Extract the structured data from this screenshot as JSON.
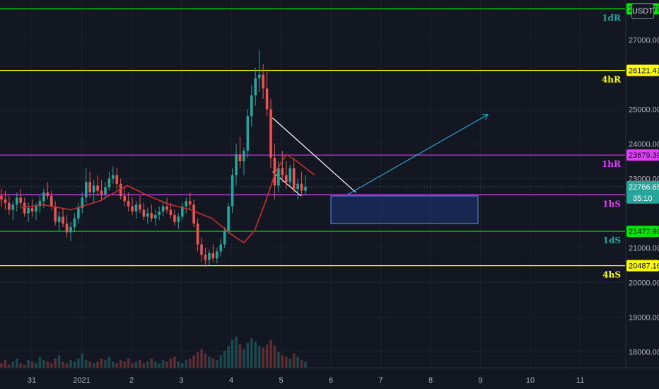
{
  "currency_button": "USDT",
  "colors": {
    "background": "#131722",
    "candle_up": "#26a69a",
    "candle_down": "#ef5350",
    "ma_line": "#c9302c",
    "level_green": "#00e400",
    "level_yellow": "#ffff00",
    "level_magenta": "#e040fb",
    "zone": "#2962ff",
    "arrow": "#2a9fd6"
  },
  "chart_data": {
    "type": "candlestick",
    "symbol_quote": "USDT",
    "y_axis": {
      "range": [
        17400,
        27900
      ],
      "ticks": [
        "27000.00",
        "25000.00",
        "24000.00",
        "23000.00",
        "21000.00",
        "20000.00",
        "19000.00",
        "18000.00"
      ]
    },
    "x_axis": {
      "ticks": [
        "31",
        "2021",
        "2",
        "3",
        "4",
        "5",
        "6",
        "7",
        "8",
        "9",
        "10",
        "11"
      ]
    },
    "levels": [
      {
        "name": "1dR",
        "price": 27920,
        "label": "27920.79",
        "color": "green"
      },
      {
        "name": "4hR",
        "price": 26121.41,
        "label": "26121.41",
        "color": "yellow"
      },
      {
        "name": "1hR",
        "price": 23679.39,
        "label": "23679.39",
        "color": "magenta"
      },
      {
        "name": "1hS",
        "price": 22530.79,
        "label": "22530.79",
        "color": "magenta"
      },
      {
        "name": "1dS",
        "price": 21477.9,
        "label": "21477.90",
        "color": "green"
      },
      {
        "name": "4hS",
        "price": 20487.16,
        "label": "20487.16",
        "color": "yellow"
      }
    ],
    "last_price": {
      "label": "22766.65"
    },
    "countdown": "35:10",
    "trendlines": [
      {
        "from": {
          "day": 4.83,
          "price": 24750
        },
        "to": {
          "day": 6.5,
          "price": 22600
        }
      },
      {
        "from": {
          "day": 4.83,
          "price": 23200
        },
        "to": {
          "day": 5.4,
          "price": 22500
        }
      },
      {
        "from": {
          "day": 6.35,
          "price": 22550
        },
        "to": {
          "day": 9.15,
          "price": 24850
        },
        "arrow": true
      }
    ],
    "zones": [
      {
        "from_day": 6.0,
        "to_day": 8.95,
        "price_high": 22500,
        "price_low": 21700
      }
    ],
    "candles_hourly_approx": [
      [
        22500,
        22700,
        22200,
        22400
      ],
      [
        22400,
        22650,
        22100,
        22300
      ],
      [
        22300,
        22500,
        21950,
        22100
      ],
      [
        22100,
        22350,
        21800,
        22250
      ],
      [
        22250,
        22600,
        22050,
        22450
      ],
      [
        22450,
        22700,
        22200,
        22300
      ],
      [
        22300,
        22450,
        21900,
        22000
      ],
      [
        22000,
        22300,
        21750,
        22150
      ],
      [
        22150,
        22400,
        21900,
        22050
      ],
      [
        22050,
        22300,
        21800,
        22200
      ],
      [
        22200,
        22500,
        22000,
        22350
      ],
      [
        22350,
        22700,
        22150,
        22600
      ],
      [
        22600,
        22900,
        22400,
        22500
      ],
      [
        22500,
        22650,
        22100,
        22200
      ],
      [
        22200,
        22350,
        21650,
        21750
      ],
      [
        21750,
        22050,
        21500,
        21900
      ],
      [
        21900,
        22150,
        21600,
        21700
      ],
      [
        21700,
        21950,
        21300,
        21450
      ],
      [
        21450,
        21750,
        21200,
        21600
      ],
      [
        21600,
        22000,
        21450,
        21850
      ],
      [
        21850,
        22300,
        21700,
        22150
      ],
      [
        22150,
        22600,
        22000,
        22450
      ],
      [
        22450,
        23300,
        22300,
        22900
      ],
      [
        22900,
        23200,
        22450,
        22600
      ],
      [
        22600,
        22950,
        22300,
        22800
      ],
      [
        22800,
        23100,
        22500,
        22650
      ],
      [
        22650,
        22950,
        22350,
        22550
      ],
      [
        22550,
        22900,
        22400,
        22750
      ],
      [
        22750,
        23200,
        22650,
        23000
      ],
      [
        23000,
        23350,
        22850,
        23100
      ],
      [
        23100,
        23300,
        22700,
        22850
      ],
      [
        22850,
        23000,
        22400,
        22500
      ],
      [
        22500,
        22750,
        22200,
        22350
      ],
      [
        22350,
        22600,
        22050,
        22200
      ],
      [
        22200,
        22450,
        21950,
        22050
      ],
      [
        22050,
        22350,
        21850,
        22250
      ],
      [
        22250,
        22500,
        22000,
        22100
      ],
      [
        22100,
        22300,
        21800,
        21900
      ],
      [
        21900,
        22150,
        21700,
        22000
      ],
      [
        22000,
        22250,
        21750,
        21850
      ],
      [
        21850,
        22100,
        21650,
        21950
      ],
      [
        21950,
        22200,
        21800,
        22050
      ],
      [
        22050,
        22350,
        21900,
        22200
      ],
      [
        22200,
        22450,
        22000,
        22100
      ],
      [
        22100,
        22300,
        21850,
        21950
      ],
      [
        21950,
        22100,
        21650,
        21750
      ],
      [
        21750,
        22000,
        21550,
        21900
      ],
      [
        21900,
        22300,
        21800,
        22200
      ],
      [
        22200,
        22450,
        22000,
        22350
      ],
      [
        22350,
        22600,
        22100,
        22250
      ],
      [
        22250,
        22400,
        21600,
        21700
      ],
      [
        21700,
        21850,
        20900,
        21100
      ],
      [
        21100,
        21300,
        20600,
        20800
      ],
      [
        20800,
        21000,
        20450,
        20650
      ],
      [
        20650,
        20950,
        20500,
        20850
      ],
      [
        20850,
        21100,
        20600,
        20700
      ],
      [
        20700,
        21000,
        20550,
        20900
      ],
      [
        20900,
        21250,
        20750,
        21100
      ],
      [
        21100,
        21600,
        21000,
        21500
      ],
      [
        21500,
        22300,
        21400,
        22200
      ],
      [
        22200,
        23300,
        22000,
        23100
      ],
      [
        23100,
        24000,
        22800,
        23700
      ],
      [
        23700,
        24200,
        23300,
        23500
      ],
      [
        23500,
        23900,
        23100,
        23800
      ],
      [
        23800,
        25000,
        23600,
        24800
      ],
      [
        24800,
        25700,
        24500,
        25400
      ],
      [
        25400,
        26200,
        25100,
        25900
      ],
      [
        25900,
        26700,
        25500,
        26000
      ],
      [
        26000,
        26300,
        25300,
        25600
      ],
      [
        25600,
        26100,
        24800,
        25000
      ],
      [
        25000,
        25300,
        23300,
        23600
      ],
      [
        23600,
        24000,
        22400,
        22800
      ],
      [
        22800,
        23500,
        22600,
        23300
      ],
      [
        23300,
        23800,
        22900,
        23100
      ],
      [
        23100,
        23500,
        22700,
        22900
      ],
      [
        22900,
        23400,
        22800,
        23300
      ],
      [
        23300,
        23600,
        22600,
        22700
      ],
      [
        22700,
        23000,
        22400,
        22850
      ],
      [
        22850,
        23200,
        22500,
        22650
      ],
      [
        22650,
        23100,
        22550,
        22766.65
      ]
    ],
    "ma_line_approx": [
      [
        29,
        22150
      ],
      [
        60,
        22250
      ],
      [
        100,
        22100
      ],
      [
        140,
        22350
      ],
      [
        180,
        22800
      ],
      [
        210,
        22500
      ],
      [
        240,
        22250
      ],
      [
        270,
        22100
      ],
      [
        300,
        21850
      ],
      [
        330,
        21350
      ],
      [
        345,
        21150
      ],
      [
        360,
        21500
      ],
      [
        375,
        22300
      ],
      [
        390,
        23200
      ],
      [
        405,
        23700
      ],
      [
        420,
        23500
      ],
      [
        445,
        23100
      ]
    ],
    "volume_approx": [
      3,
      5,
      2,
      4,
      6,
      3,
      2,
      5,
      4,
      3,
      7,
      5,
      4,
      3,
      6,
      8,
      4,
      3,
      5,
      4,
      6,
      9,
      5,
      4,
      3,
      4,
      6,
      5,
      7,
      4,
      3,
      5,
      4,
      6,
      3,
      4,
      5,
      3,
      4,
      6,
      4,
      3,
      5,
      4,
      6,
      7,
      4,
      3,
      5,
      6,
      8,
      10,
      12,
      9,
      7,
      6,
      5,
      8,
      11,
      14,
      18,
      20,
      15,
      12,
      16,
      19,
      17,
      14,
      13,
      15,
      18,
      14,
      10,
      8,
      7,
      6,
      9,
      7,
      5,
      4
    ]
  }
}
